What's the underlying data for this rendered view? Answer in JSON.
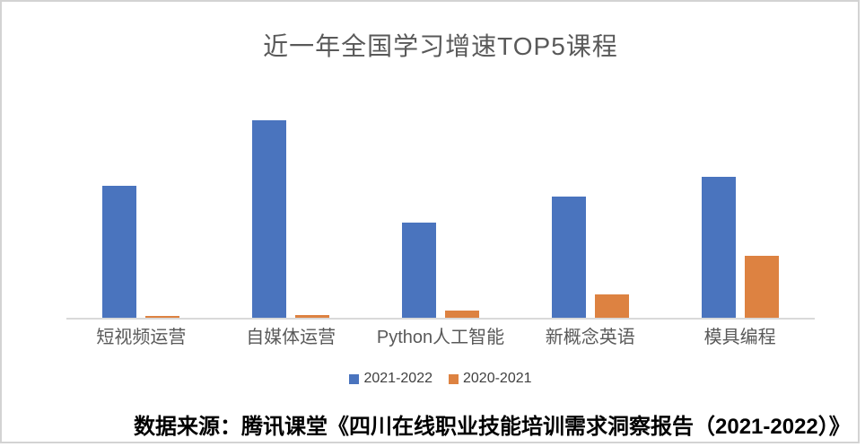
{
  "chart_data": {
    "type": "bar",
    "title": "近一年全国学习增速TOP5课程",
    "categories": [
      "短视频运营",
      "自媒体运营",
      "Python人工智能",
      "新概念英语",
      "模具编程"
    ],
    "series": [
      {
        "name": "2021-2022",
        "color": "#4A74BE",
        "values": [
          148,
          221,
          107,
          136,
          158
        ]
      },
      {
        "name": "2020-2021",
        "color": "#DD8241",
        "values": [
          3,
          4,
          9,
          27,
          70
        ]
      }
    ],
    "xlabel": "",
    "ylabel": "",
    "ylim": [
      0,
      255
    ],
    "value_scale": "relative units (y-axis unlabeled in source image)",
    "grid": false,
    "legend_position": "bottom"
  },
  "source_note": "数据来源：腾讯课堂《四川在线职业技能培训需求洞察报告（2021-2022）》",
  "colors": {
    "series_blue": "#4A74BE",
    "series_orange": "#DD8241",
    "title_text": "#595959",
    "category_text": "#595959",
    "legend_text": "#404040",
    "axis_line": "#D9D9D9",
    "frame_border": "#D3D3D3",
    "source_text": "#000000"
  }
}
